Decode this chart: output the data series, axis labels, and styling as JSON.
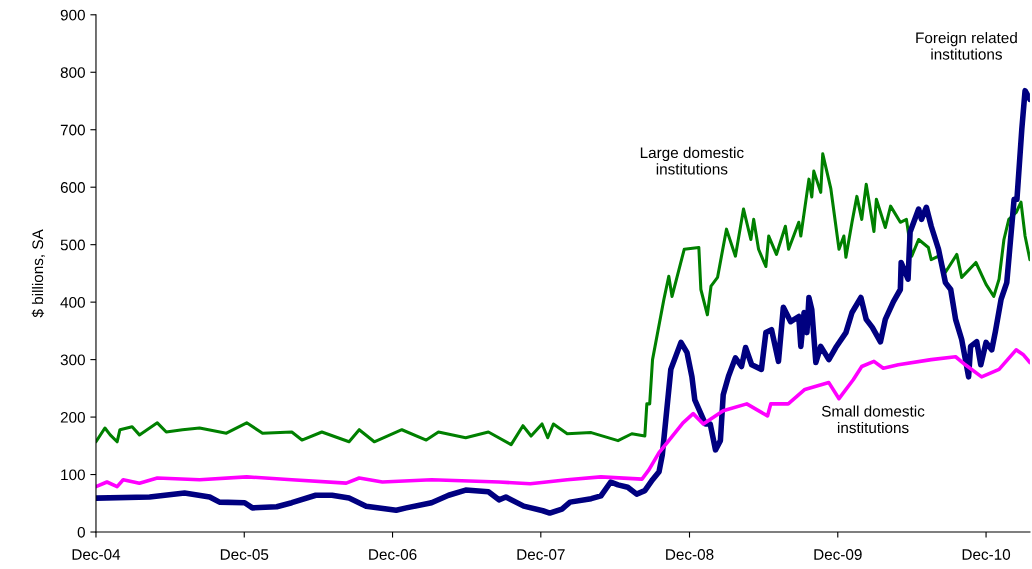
{
  "chart_data": {
    "type": "line",
    "ylabel": "$ billions, SA",
    "ylim": [
      0,
      900
    ],
    "yticks": [
      0,
      100,
      200,
      300,
      400,
      500,
      600,
      700,
      800,
      900
    ],
    "xlim": [
      "2004-12-01",
      "2011-03-19"
    ],
    "xticks": [
      {
        "value": "2004-12",
        "label": "Dec-04"
      },
      {
        "value": "2005-12",
        "label": "Dec-05"
      },
      {
        "value": "2006-12",
        "label": "Dec-06"
      },
      {
        "value": "2007-12",
        "label": "Dec-07"
      },
      {
        "value": "2008-12",
        "label": "Dec-08"
      },
      {
        "value": "2009-12",
        "label": "Dec-09"
      },
      {
        "value": "2010-12",
        "label": "Dec-10"
      }
    ],
    "grid": false,
    "legend": false,
    "line_style": "solid",
    "marker": "none",
    "series": [
      {
        "name": "Large domestic institutions",
        "color": "#008000",
        "x": [
          "2004-12-01",
          "2004-12-23",
          "2005-01-05",
          "2005-01-22",
          "2005-01-29",
          "2005-02-28",
          "2005-03-18",
          "2005-05-01",
          "2005-05-23",
          "2005-07-02",
          "2005-08-13",
          "2005-10-18",
          "2005-12-07",
          "2006-01-15",
          "2006-03-28",
          "2006-04-22",
          "2006-06-10",
          "2006-08-16",
          "2006-09-10",
          "2006-10-17",
          "2006-12-24",
          "2007-02-22",
          "2007-03-24",
          "2007-05-30",
          "2007-07-25",
          "2007-09-19",
          "2007-10-18",
          "2007-11-07",
          "2007-12-04",
          "2007-12-18",
          "2008-01-01",
          "2008-02-04",
          "2008-04-03",
          "2008-06-08",
          "2008-07-12",
          "2008-08-13",
          "2008-08-18",
          "2008-08-25",
          "2008-09-01",
          "2008-09-29",
          "2008-10-11",
          "2008-10-19",
          "2008-11-18",
          "2008-12-24",
          "2008-12-29",
          "2009-01-14",
          "2009-01-23",
          "2009-02-08",
          "2009-03-02",
          "2009-03-24",
          "2009-04-13",
          "2009-05-01",
          "2009-05-08",
          "2009-05-20",
          "2009-06-07",
          "2009-06-14",
          "2009-07-03",
          "2009-07-25",
          "2009-08-02",
          "2009-08-27",
          "2009-09-01",
          "2009-09-21",
          "2009-09-28",
          "2009-10-03",
          "2009-10-20",
          "2009-10-25",
          "2009-11-14",
          "2009-12-04",
          "2009-12-16",
          "2009-12-21",
          "2010-01-05",
          "2010-01-17",
          "2010-01-29",
          "2010-02-09",
          "2010-02-28",
          "2010-03-06",
          "2010-03-28",
          "2010-04-10",
          "2010-05-04",
          "2010-05-19",
          "2010-06-01",
          "2010-06-18",
          "2010-07-12",
          "2010-07-19",
          "2010-08-06",
          "2010-08-23",
          "2010-09-20",
          "2010-10-02",
          "2010-11-06",
          "2010-12-01",
          "2010-12-20",
          "2011-01-02",
          "2011-01-14",
          "2011-01-26",
          "2011-02-13",
          "2011-02-25",
          "2011-03-07",
          "2011-03-19"
        ],
        "values": [
          157,
          181,
          169,
          157,
          178,
          183,
          169,
          190,
          174,
          178,
          181,
          172,
          190,
          172,
          174,
          160,
          174,
          157,
          178,
          157,
          178,
          160,
          174,
          164,
          174,
          152,
          185,
          167,
          188,
          164,
          188,
          171,
          173,
          159,
          171,
          167,
          223,
          223,
          300,
          405,
          445,
          410,
          492,
          495,
          422,
          378,
          428,
          443,
          527,
          480,
          562,
          509,
          544,
          492,
          462,
          515,
          483,
          532,
          492,
          539,
          515,
          614,
          583,
          628,
          591,
          658,
          597,
          492,
          515,
          478,
          539,
          584,
          544,
          605,
          523,
          579,
          530,
          567,
          539,
          544,
          480,
          509,
          495,
          474,
          480,
          452,
          483,
          443,
          469,
          431,
          410,
          440,
          509,
          544,
          556,
          574,
          515,
          474
        ]
      },
      {
        "name": "Foreign related institutions",
        "color": "#000080",
        "x": [
          "2004-12-01",
          "2005-04-12",
          "2005-07-07",
          "2005-09-07",
          "2005-10-01",
          "2005-12-02",
          "2005-12-21",
          "2006-02-19",
          "2006-03-28",
          "2006-05-26",
          "2006-07-05",
          "2006-08-16",
          "2006-09-27",
          "2006-12-10",
          "2007-01-04",
          "2007-03-07",
          "2007-04-18",
          "2007-05-30",
          "2007-07-25",
          "2007-08-20",
          "2007-09-06",
          "2007-10-20",
          "2007-12-06",
          "2007-12-23",
          "2008-01-22",
          "2008-02-11",
          "2008-04-03",
          "2008-04-27",
          "2008-05-21",
          "2008-06-08",
          "2008-07-02",
          "2008-07-24",
          "2008-08-13",
          "2008-09-01",
          "2008-09-17",
          "2008-09-25",
          "2008-10-16",
          "2008-11-10",
          "2008-11-25",
          "2008-12-07",
          "2008-12-14",
          "2009-01-09",
          "2009-01-21",
          "2009-02-03",
          "2009-02-15",
          "2009-02-22",
          "2009-03-07",
          "2009-03-24",
          "2009-04-08",
          "2009-04-18",
          "2009-05-03",
          "2009-05-27",
          "2009-06-07",
          "2009-06-21",
          "2009-07-08",
          "2009-07-20",
          "2009-08-07",
          "2009-08-27",
          "2009-09-01",
          "2009-09-09",
          "2009-09-16",
          "2009-09-21",
          "2009-09-28",
          "2009-10-08",
          "2009-10-20",
          "2009-11-09",
          "2009-11-26",
          "2009-12-21",
          "2010-01-05",
          "2010-01-27",
          "2010-02-09",
          "2010-02-24",
          "2010-03-16",
          "2010-03-28",
          "2010-04-17",
          "2010-05-04",
          "2010-05-06",
          "2010-05-23",
          "2010-05-28",
          "2010-06-18",
          "2010-06-25",
          "2010-07-07",
          "2010-07-19",
          "2010-08-06",
          "2010-08-23",
          "2010-09-05",
          "2010-09-17",
          "2010-10-02",
          "2010-10-19",
          "2010-10-24",
          "2010-11-08",
          "2010-11-18",
          "2010-12-01",
          "2010-12-15",
          "2010-12-24",
          "2011-01-07",
          "2011-01-21",
          "2011-02-08",
          "2011-02-15",
          "2011-02-27",
          "2011-03-07",
          "2011-03-19"
        ],
        "values": [
          59,
          61,
          68,
          61,
          52,
          51,
          42,
          44,
          51,
          64,
          64,
          59,
          45,
          38,
          42,
          51,
          64,
          73,
          70,
          56,
          61,
          45,
          37,
          33,
          40,
          52,
          58,
          63,
          87,
          82,
          78,
          66,
          72,
          91,
          105,
          134,
          283,
          330,
          312,
          270,
          230,
          188,
          188,
          143,
          159,
          239,
          271,
          303,
          288,
          321,
          291,
          283,
          347,
          352,
          297,
          391,
          366,
          375,
          323,
          382,
          347,
          408,
          387,
          295,
          323,
          300,
          321,
          347,
          382,
          408,
          370,
          356,
          331,
          370,
          401,
          422,
          469,
          440,
          522,
          562,
          544,
          565,
          532,
          492,
          434,
          422,
          370,
          335,
          270,
          323,
          331,
          291,
          330,
          317,
          349,
          405,
          434,
          579,
          579,
          701,
          768,
          753
        ]
      },
      {
        "name": "Small domestic institutions",
        "color": "#ff00ff",
        "x": [
          "2004-12-01",
          "2004-12-28",
          "2005-01-22",
          "2005-02-06",
          "2005-03-18",
          "2005-05-01",
          "2005-08-13",
          "2005-12-07",
          "2006-03-28",
          "2006-08-09",
          "2006-09-10",
          "2006-11-06",
          "2007-03-07",
          "2007-08-20",
          "2007-11-05",
          "2008-02-04",
          "2008-04-27",
          "2008-08-06",
          "2008-08-23",
          "2008-09-17",
          "2008-10-11",
          "2008-11-15",
          "2008-12-10",
          "2009-01-04",
          "2009-02-22",
          "2009-04-21",
          "2009-06-11",
          "2009-06-19",
          "2009-08-01",
          "2009-09-11",
          "2009-11-09",
          "2009-12-04",
          "2010-01-08",
          "2010-01-29",
          "2010-02-28",
          "2010-03-23",
          "2010-04-29",
          "2010-07-19",
          "2010-09-17",
          "2010-10-11",
          "2010-11-20",
          "2011-01-02",
          "2011-02-13",
          "2011-03-02",
          "2011-03-19"
        ],
        "values": [
          79,
          87,
          79,
          91,
          85,
          94,
          91,
          96,
          91,
          85,
          94,
          87,
          91,
          87,
          84,
          91,
          96,
          92,
          108,
          138,
          159,
          190,
          206,
          188,
          211,
          223,
          202,
          223,
          223,
          248,
          260,
          232,
          265,
          288,
          297,
          285,
          291,
          300,
          305,
          291,
          270,
          283,
          317,
          309,
          295
        ]
      }
    ]
  }
}
